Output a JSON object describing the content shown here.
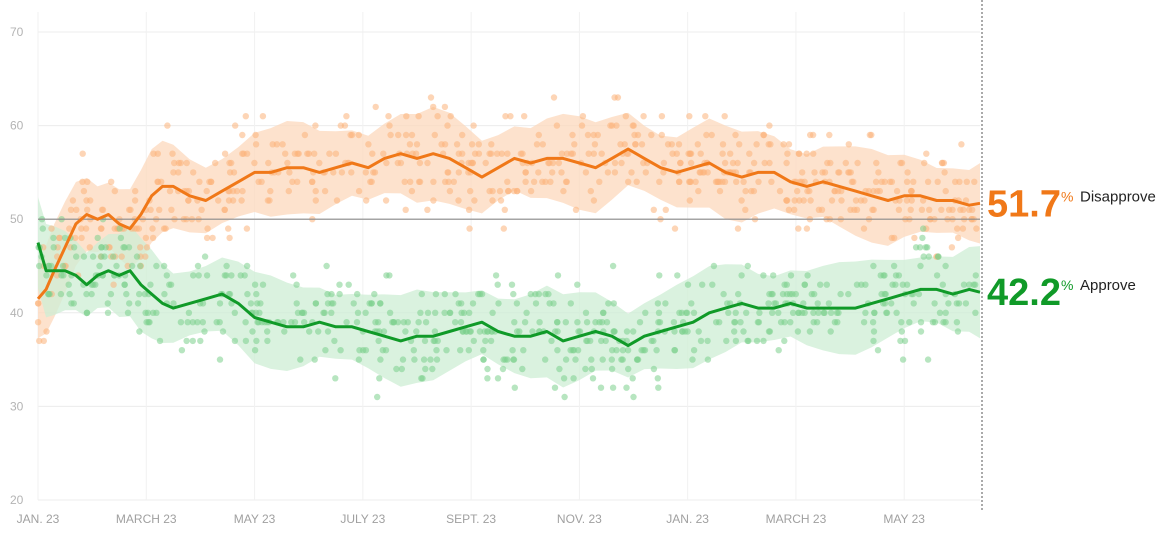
{
  "chart_data": {
    "type": "line",
    "title": "",
    "xlabel": "",
    "ylabel": "",
    "ylim": [
      20,
      70
    ],
    "y_ticks": [
      "70",
      "60",
      "50",
      "40",
      "30",
      "20"
    ],
    "x_ticks": [
      "JAN. 23",
      "MARCH 23",
      "MAY 23",
      "JULY 23",
      "SEPT. 23",
      "NOV. 23",
      "JAN. 23",
      "MARCH 23",
      "MAY 23"
    ],
    "x_months": [
      0,
      2,
      4,
      6,
      8,
      10,
      12,
      14,
      16
    ],
    "x_range_months": [
      0,
      17.4
    ],
    "reference_line": 50,
    "grid": true,
    "series": [
      {
        "name": "Disapprove",
        "latest": "51.7",
        "pct_symbol": "%",
        "color": "#f07818",
        "point_color": "#fbb27a",
        "band_color": "#fcd8bc",
        "months": [
          0,
          0.15,
          0.3,
          0.5,
          0.7,
          0.9,
          1.1,
          1.3,
          1.5,
          1.7,
          1.9,
          2.1,
          2.3,
          2.5,
          2.8,
          3.1,
          3.4,
          3.7,
          4.0,
          4.3,
          4.6,
          4.9,
          5.2,
          5.5,
          5.8,
          6.1,
          6.4,
          6.7,
          7.0,
          7.3,
          7.6,
          7.9,
          8.2,
          8.5,
          8.8,
          9.1,
          9.4,
          9.7,
          10.0,
          10.3,
          10.6,
          10.9,
          11.2,
          11.5,
          11.8,
          12.1,
          12.4,
          12.7,
          13.0,
          13.3,
          13.6,
          13.9,
          14.2,
          14.5,
          14.8,
          15.1,
          15.4,
          15.7,
          16.0,
          16.3,
          16.6,
          16.9,
          17.2,
          17.4
        ],
        "values": [
          41.5,
          42.5,
          44.5,
          47.0,
          49.5,
          50.5,
          50.0,
          50.5,
          49.5,
          49.0,
          50.5,
          52.5,
          53.5,
          53.5,
          52.5,
          52.0,
          53.0,
          54.0,
          55.0,
          55.0,
          55.5,
          55.5,
          55.0,
          55.5,
          56.0,
          55.5,
          56.5,
          57.0,
          56.5,
          57.0,
          56.5,
          55.5,
          54.5,
          55.5,
          56.5,
          56.0,
          56.5,
          56.5,
          56.0,
          55.5,
          56.5,
          57.5,
          56.5,
          55.5,
          55.0,
          55.5,
          56.0,
          55.0,
          54.5,
          55.0,
          55.0,
          54.0,
          53.5,
          54.0,
          53.5,
          53.0,
          52.5,
          52.0,
          52.5,
          52.5,
          52.0,
          52.0,
          51.5,
          51.7
        ]
      },
      {
        "name": "Approve",
        "latest": "42.2",
        "pct_symbol": "%",
        "color": "#109a28",
        "point_color": "#7bcf8c",
        "band_color": "#cdeed4",
        "months": [
          0,
          0.15,
          0.3,
          0.5,
          0.7,
          0.9,
          1.1,
          1.3,
          1.5,
          1.7,
          1.9,
          2.1,
          2.3,
          2.5,
          2.8,
          3.1,
          3.4,
          3.7,
          4.0,
          4.3,
          4.6,
          4.9,
          5.2,
          5.5,
          5.8,
          6.1,
          6.4,
          6.7,
          7.0,
          7.3,
          7.6,
          7.9,
          8.2,
          8.5,
          8.8,
          9.1,
          9.4,
          9.7,
          10.0,
          10.3,
          10.6,
          10.9,
          11.2,
          11.5,
          11.8,
          12.1,
          12.4,
          12.7,
          13.0,
          13.3,
          13.6,
          13.9,
          14.2,
          14.5,
          14.8,
          15.1,
          15.4,
          15.7,
          16.0,
          16.3,
          16.6,
          16.9,
          17.2,
          17.4
        ],
        "values": [
          47.5,
          44.5,
          44.5,
          44.5,
          44.0,
          43.0,
          44.0,
          44.5,
          44.0,
          44.5,
          43.0,
          42.0,
          41.0,
          40.5,
          41.0,
          41.5,
          42.0,
          41.0,
          39.5,
          39.0,
          38.5,
          38.5,
          39.0,
          38.5,
          38.5,
          38.0,
          37.5,
          37.0,
          37.5,
          37.5,
          38.0,
          38.5,
          39.0,
          38.0,
          37.5,
          37.5,
          38.0,
          37.0,
          37.5,
          38.0,
          37.5,
          36.5,
          37.5,
          38.0,
          38.5,
          39.0,
          40.0,
          40.5,
          41.0,
          40.5,
          40.5,
          41.0,
          40.5,
          40.5,
          40.5,
          40.5,
          41.0,
          41.5,
          42.0,
          42.5,
          42.5,
          42.0,
          42.5,
          42.2
        ]
      }
    ]
  }
}
